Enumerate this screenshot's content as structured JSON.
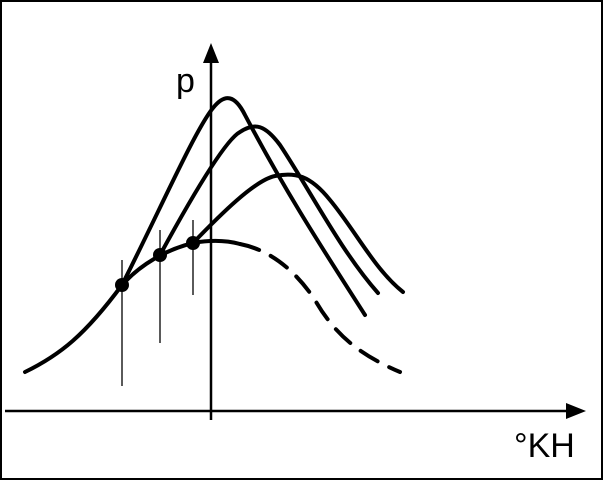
{
  "axes": {
    "y_label": "p",
    "x_label": "°KH"
  }
}
